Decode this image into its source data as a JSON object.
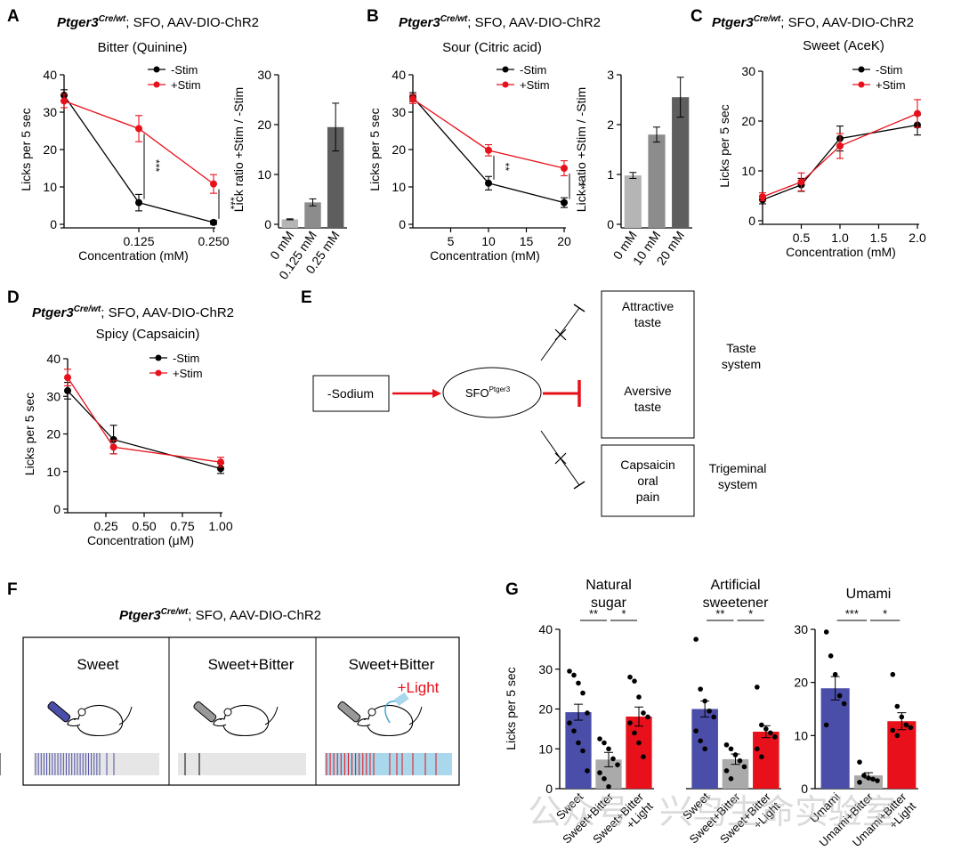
{
  "panel_letters": [
    "A",
    "B",
    "C",
    "D",
    "E",
    "F",
    "G"
  ],
  "genotype": {
    "gene": "Ptger3",
    "sup": "Cre/wt",
    "rest": "; SFO, AAV-DIO-ChR2"
  },
  "colors": {
    "neg": "#000000",
    "pos": "#e8101a",
    "blue": "#4a4ea8",
    "grey": "#aaaaaa",
    "red": "#e8101a",
    "light": "#a9d7ec",
    "bar_light": "#b5b5b5",
    "bar_mid": "#8c8c8c",
    "bar_dark": "#5e5e5e"
  },
  "chart_data": [
    {
      "id": "A",
      "type": "line",
      "title": "Bitter (Quinine)",
      "xlabel": "Concentration (mM)",
      "ylabel": "Licks per 5 sec",
      "x": [
        0,
        0.125,
        0.25
      ],
      "xticks": [
        "0.125",
        "0.250"
      ],
      "xlim": [
        0,
        0.25
      ],
      "yticks": [
        "0",
        "10",
        "20",
        "30",
        "40"
      ],
      "ylim": [
        0,
        40
      ],
      "legend": [
        "-Stim",
        "+Stim"
      ],
      "series": [
        {
          "name": "-Stim",
          "values": [
            34.5,
            5.8,
            0.5
          ],
          "err": [
            1.5,
            2.2,
            0.5
          ]
        },
        {
          "name": "+Stim",
          "values": [
            33,
            25.6,
            10.8
          ],
          "err": [
            1.8,
            3.5,
            2.5
          ]
        }
      ],
      "annotations": [
        "***",
        "***"
      ]
    },
    {
      "id": "A2",
      "type": "bar",
      "ylabel": "Lick ratio +Stim / -Stim",
      "categories": [
        "0 mM",
        "0.125 mM",
        "0.25 mM"
      ],
      "values": [
        1,
        4.4,
        19.5
      ],
      "err": [
        0.1,
        0.7,
        4.8
      ],
      "yticks": [
        "0",
        "10",
        "20",
        "30"
      ],
      "ylim": [
        0,
        30
      ]
    },
    {
      "id": "B",
      "type": "line",
      "title": "Sour (Citric acid)",
      "xlabel": "Concentration (mM)",
      "ylabel": "Licks per 5 sec",
      "x": [
        0,
        10,
        20
      ],
      "xticks": [
        "5",
        "10",
        "15",
        "20"
      ],
      "xlim": [
        0,
        20
      ],
      "yticks": [
        "0",
        "10",
        "20",
        "30",
        "40"
      ],
      "ylim": [
        0,
        40
      ],
      "legend": [
        "-Stim",
        "+Stim"
      ],
      "series": [
        {
          "name": "-Stim",
          "values": [
            34,
            11,
            5.8
          ],
          "err": [
            1.2,
            1.8,
            1.3
          ]
        },
        {
          "name": "+Stim",
          "values": [
            33.5,
            19.8,
            15
          ],
          "err": [
            1.2,
            1.5,
            2
          ]
        }
      ],
      "annotations": [
        "**",
        "**"
      ]
    },
    {
      "id": "B2",
      "type": "bar",
      "ylabel": "Lick ratio +Stim / -Stim",
      "categories": [
        "0 mM",
        "10 mM",
        "20 mM"
      ],
      "values": [
        0.98,
        1.8,
        2.55
      ],
      "err": [
        0.06,
        0.15,
        0.4
      ],
      "yticks": [
        "0",
        "1",
        "2",
        "3"
      ],
      "ylim": [
        0,
        3
      ]
    },
    {
      "id": "C",
      "type": "line",
      "title": "Sweet (AceK)",
      "xlabel": "Concentration (mM)",
      "ylabel": "Licks per 5 sec",
      "x": [
        0,
        0.5,
        1,
        2
      ],
      "xticks": [
        "0.5",
        "1.0",
        "1.5",
        "2.0"
      ],
      "xlim": [
        0,
        2
      ],
      "yticks": [
        "0",
        "10",
        "20",
        "30"
      ],
      "ylim": [
        0,
        30
      ],
      "legend": [
        "-Stim",
        "+Stim"
      ],
      "series": [
        {
          "name": "-Stim",
          "values": [
            4.2,
            7.2,
            16.5,
            19.2
          ],
          "err": [
            0.8,
            1.3,
            2.5,
            2
          ]
        },
        {
          "name": "+Stim",
          "values": [
            4.8,
            7.8,
            15,
            21.5
          ],
          "err": [
            0.8,
            1.8,
            2.5,
            2.8
          ]
        }
      ]
    },
    {
      "id": "D",
      "type": "line",
      "title": "Spicy (Capsaicin)",
      "xlabel": "Concentration (μM)",
      "ylabel": "Licks per 5 sec",
      "x": [
        0,
        0.3,
        1
      ],
      "xticks": [
        "0.25",
        "0.50",
        "0.75",
        "1.00"
      ],
      "xlim": [
        0,
        1
      ],
      "yticks": [
        "0",
        "10",
        "20",
        "30",
        "40"
      ],
      "ylim": [
        0,
        40
      ],
      "legend": [
        "-Stim",
        "+Stim"
      ],
      "series": [
        {
          "name": "-Stim",
          "values": [
            31.5,
            18.5,
            10.8
          ],
          "err": [
            2.2,
            3.8,
            1.3
          ]
        },
        {
          "name": "+Stim",
          "values": [
            35,
            16.5,
            12.5
          ],
          "err": [
            2.2,
            1.8,
            1.3
          ]
        }
      ]
    },
    {
      "id": "G",
      "type": "bar",
      "ylabel": "Licks per 5 sec",
      "groups": [
        {
          "title": [
            "Natural",
            "sugar"
          ],
          "ylim": [
            0,
            40
          ],
          "yticks": [
            "0",
            "10",
            "20",
            "30",
            "40"
          ],
          "categories": [
            "Sweet",
            "Sweet+Bitter",
            "Sweet+Bitter +Light"
          ],
          "values": [
            19.2,
            7.3,
            18.1
          ],
          "err": [
            2,
            1.8,
            2.4
          ],
          "points": [
            [
              29.5,
              28.5,
              26.5,
              24,
              19,
              16.5,
              14.5,
              11.5,
              9.5,
              4.5
            ],
            [
              12.5,
              11.5,
              10,
              7.5,
              6,
              4,
              2.5,
              0.5
            ],
            [
              28,
              27,
              23,
              19,
              18,
              16.5,
              14,
              11.5,
              8
            ]
          ],
          "sig": [
            "**",
            "*"
          ]
        },
        {
          "title": [
            "Artificial",
            "sweetener"
          ],
          "ylim": [
            0,
            40
          ],
          "yticks": [],
          "categories": [
            "Sweet",
            "Sweet+Bitter",
            "Sweet+Bitter +Light"
          ],
          "values": [
            20,
            7.4,
            14.3
          ],
          "err": [
            2,
            1.3,
            1.5
          ],
          "points": [
            [
              37.5,
              25,
              22,
              19.5,
              18,
              14.5,
              12,
              10
            ],
            [
              11,
              10,
              8.5,
              7,
              5.5,
              4.5,
              2.5
            ],
            [
              25.5,
              16,
              15,
              14,
              13,
              10,
              8
            ]
          ],
          "sig": [
            "**",
            "*"
          ]
        },
        {
          "title": [
            "Umami"
          ],
          "ylim": [
            0,
            30
          ],
          "yticks": [
            "0",
            "10",
            "20",
            "30"
          ],
          "categories": [
            "Umami",
            "Umami+Bitter",
            "Umami+Bitter +Light"
          ],
          "values": [
            18.9,
            2.5,
            12.7
          ],
          "err": [
            2.2,
            0.5,
            1.6
          ],
          "points": [
            [
              29.5,
              25,
              21.5,
              17.5,
              16,
              12
            ],
            [
              5,
              2.5,
              2,
              1.8,
              1.5,
              1.2
            ],
            [
              21.5,
              15.5,
              13.5,
              12,
              11.5,
              11,
              10
            ]
          ],
          "sig": [
            "***",
            "*"
          ]
        }
      ]
    }
  ],
  "diagram": {
    "input": "-Sodium",
    "node": "SFO",
    "node_sup": "Ptger3",
    "box1": [
      "Attractive",
      "taste"
    ],
    "box2": [
      "Aversive",
      "taste"
    ],
    "box3": [
      "Capsaicin",
      "oral",
      "pain"
    ],
    "label_taste": [
      "Taste",
      "system"
    ],
    "label_trig": [
      "Trigeminal",
      "system"
    ]
  },
  "schematic": {
    "conditions": [
      "Sweet",
      "Sweet+Bitter",
      "Sweet+Bitter"
    ],
    "light_label": "+Light"
  },
  "watermark": "公众号 · 兴鸟生命实验室"
}
